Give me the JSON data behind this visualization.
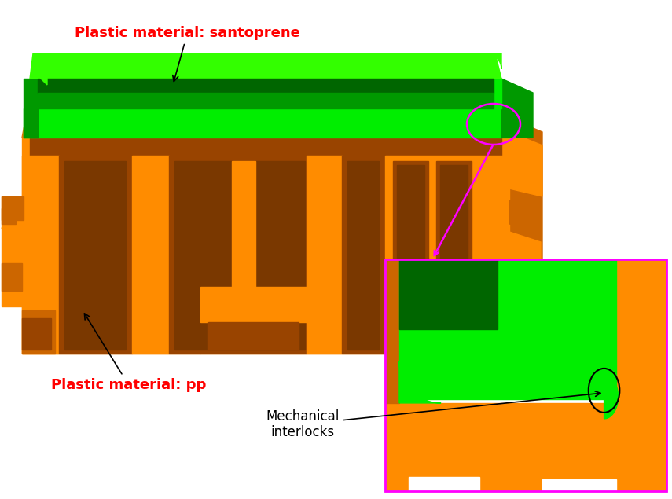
{
  "background_color": "#ffffff",
  "orange": "#FF8C00",
  "orange_dark": "#CC6600",
  "orange_darker": "#994400",
  "orange_side": "#E07800",
  "green_bright": "#00EE00",
  "green_top": "#33FF00",
  "green_dark": "#009900",
  "green_inner": "#006600",
  "red": "#FF0000",
  "magenta": "#FF00FF",
  "black": "#000000",
  "white": "#ffffff",
  "text_santoprene": "Plastic material: santoprene",
  "text_pp": "Plastic material: pp",
  "text_interlocks": "Mechanical\ninterlocks",
  "figsize": [
    8.55,
    6.35
  ],
  "dpi": 100
}
